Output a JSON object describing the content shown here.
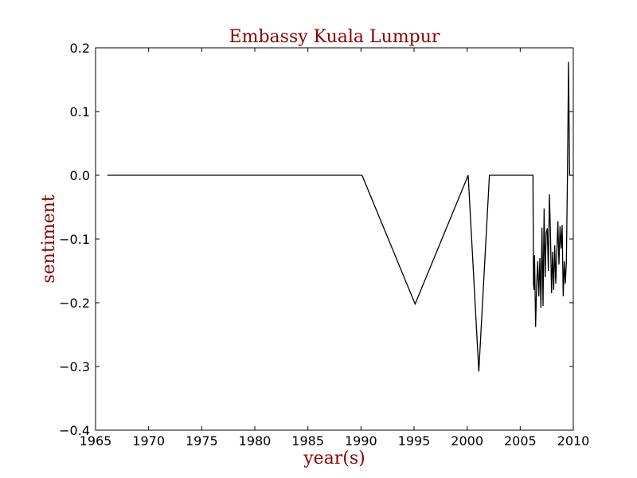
{
  "chart_data": {
    "type": "line",
    "title": "Embassy Kuala Lumpur",
    "xlabel": "year(s)",
    "ylabel": "sentiment",
    "xlim": [
      1965,
      2010
    ],
    "ylim": [
      -0.4,
      0.2
    ],
    "xticks": [
      1965,
      1970,
      1975,
      1980,
      1985,
      1990,
      1995,
      2000,
      2005,
      2010
    ],
    "yticks": [
      -0.4,
      -0.3,
      -0.2,
      -0.1,
      0.0,
      0.1,
      0.2
    ],
    "xtick_labels": [
      "1965",
      "1970",
      "1975",
      "1980",
      "1985",
      "1990",
      "1995",
      "2000",
      "2005",
      "2010"
    ],
    "ytick_labels": [
      "−0.4",
      "−0.3",
      "−0.2",
      "−0.1",
      "0.0",
      "0.1",
      "0.2"
    ],
    "grid": false,
    "colors": {
      "line": "#000000",
      "label": "#8b0000",
      "axes": "#000000"
    },
    "series": [
      {
        "x": [
          1966.1,
          1990.1,
          1995.1,
          2000.1,
          2001.1,
          2002.1,
          2006.2,
          2006.25,
          2006.3,
          2006.35,
          2006.45,
          2006.55,
          2006.65,
          2006.75,
          2006.85,
          2006.95,
          2007.05,
          2007.15,
          2007.25,
          2007.35,
          2007.45,
          2007.55,
          2007.65,
          2007.75,
          2007.85,
          2007.95,
          2008.05,
          2008.15,
          2008.25,
          2008.35,
          2008.45,
          2008.55,
          2008.65,
          2008.75,
          2008.85,
          2008.95,
          2009.05,
          2009.15,
          2009.25,
          2009.35,
          2009.45,
          2009.55,
          2009.65,
          2009.75,
          2009.8,
          2009.85,
          2009.9,
          2009.95
        ],
        "y": [
          0.0,
          0.0,
          -0.202,
          0.0,
          -0.308,
          0.0,
          0.0,
          -0.17,
          -0.18,
          -0.125,
          -0.238,
          -0.17,
          -0.135,
          -0.19,
          -0.13,
          -0.208,
          -0.082,
          -0.205,
          -0.052,
          -0.16,
          -0.09,
          -0.083,
          -0.15,
          -0.03,
          -0.09,
          -0.185,
          -0.12,
          -0.18,
          -0.11,
          -0.17,
          -0.12,
          -0.072,
          -0.14,
          -0.08,
          -0.115,
          -0.078,
          -0.19,
          -0.135,
          -0.17,
          -0.135,
          0.0,
          0.178,
          0.0,
          0.0,
          0.0,
          0.0,
          0.0,
          0.0
        ]
      }
    ]
  }
}
